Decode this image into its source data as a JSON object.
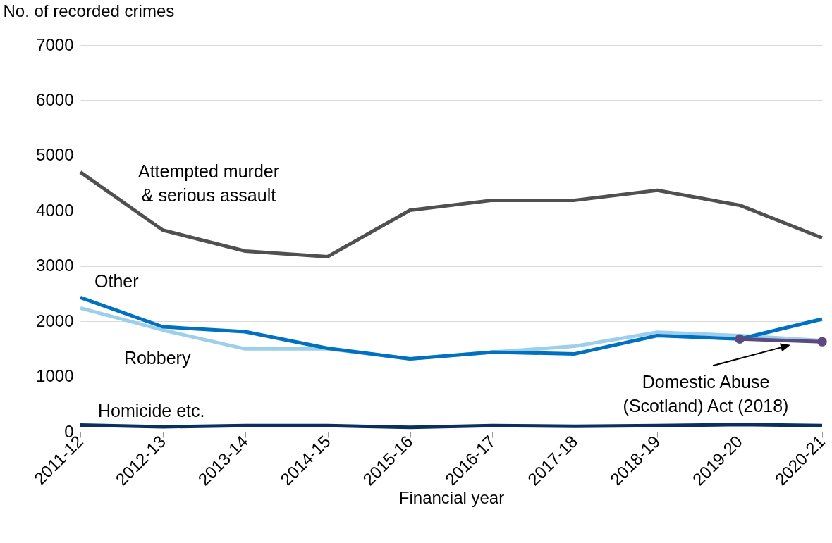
{
  "chart_data": {
    "type": "line",
    "xlabel": "Financial year",
    "ylabel": "No. of recorded crimes",
    "categories": [
      "2011-12",
      "2012-13",
      "2013-14",
      "2014-15",
      "2015-16",
      "2016-17",
      "2017-18",
      "2018-19",
      "2019-20",
      "2020-21"
    ],
    "series": [
      {
        "name": "Attempted murder & serious assault",
        "color": "#505050",
        "values": [
          4700,
          3650,
          3270,
          3170,
          4010,
          4190,
          4190,
          4370,
          4100,
          3510
        ]
      },
      {
        "name": "Robbery",
        "color": "#9dcfea",
        "values": [
          2240,
          1840,
          1500,
          1500,
          1320,
          1440,
          1550,
          1800,
          1740,
          1650
        ]
      },
      {
        "name": "Other",
        "color": "#0070c0",
        "values": [
          2430,
          1900,
          1810,
          1510,
          1320,
          1440,
          1410,
          1740,
          1680,
          2040
        ]
      },
      {
        "name": "Domestic Abuse (Scotland) Act (2018)",
        "color": "#5b4a7f",
        "marker": "circle",
        "values": [
          null,
          null,
          null,
          null,
          null,
          null,
          null,
          null,
          1680,
          1630
        ]
      },
      {
        "name": "Homicide etc.",
        "color": "#0b3060",
        "values": [
          120,
          90,
          110,
          110,
          80,
          110,
          100,
          110,
          130,
          110
        ]
      }
    ],
    "ylim": [
      0,
      7000
    ],
    "yticks": [
      0,
      1000,
      2000,
      3000,
      4000,
      5000,
      6000,
      7000
    ],
    "grid": "y",
    "marker": "none",
    "line_style": "solid",
    "legend": false
  }
}
